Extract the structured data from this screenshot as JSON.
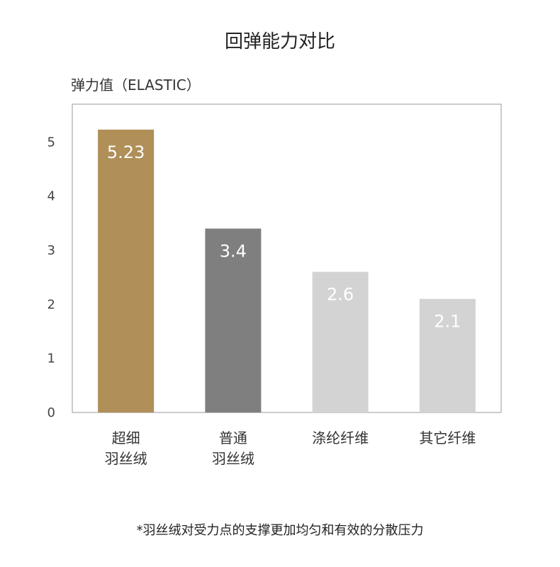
{
  "chart_data": {
    "type": "bar",
    "title": "回弹能力对比",
    "ylabel": "弹力值（ELASTIC）",
    "xlabel": "",
    "categories": [
      [
        "超细",
        "羽丝绒"
      ],
      [
        "普通",
        "羽丝绒"
      ],
      [
        "涤纶纤维"
      ],
      [
        "其它纤维"
      ]
    ],
    "values": [
      5.23,
      3.4,
      2.6,
      2.1
    ],
    "data_labels": [
      "5.23",
      "3.4",
      "2.6",
      "2.1"
    ],
    "bar_colors": [
      "#b08f58",
      "#7f7f7f",
      "#d3d3d3",
      "#d3d3d3"
    ],
    "ylim": [
      0,
      5.7
    ],
    "yticks": [
      0,
      1,
      2,
      3,
      4,
      5
    ],
    "grid": false,
    "legend": "none"
  },
  "footnote": "*羽丝绒对受力点的支撑更加均匀和有效的分散压力"
}
